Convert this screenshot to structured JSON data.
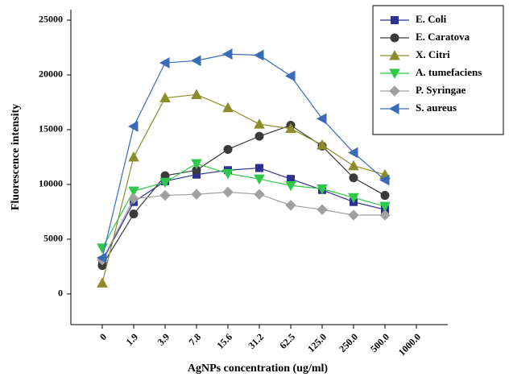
{
  "chart_data": {
    "type": "line",
    "x_label": "AgNPs concentration (ug/ml)",
    "y_label": "Fluorescence intensity",
    "categories": [
      "0",
      "1.9",
      "3.9",
      "7.8",
      "15.6",
      "31.2",
      "62.5",
      "125.0",
      "250.0",
      "500.0",
      "1000.0"
    ],
    "ylim": [
      -2800,
      25500
    ],
    "yticks": [
      0,
      5000,
      10000,
      15000,
      20000,
      25000
    ],
    "legend": "upper right",
    "series": [
      {
        "name": "E. Coli",
        "color": "#2e3192",
        "marker": "square",
        "values": [
          3000,
          8400,
          10300,
          10900,
          11300,
          11500,
          10500,
          9500,
          8400,
          7700,
          null
        ]
      },
      {
        "name": "E. Caratova",
        "color": "#3a3a3a",
        "marker": "circle",
        "values": [
          2600,
          7300,
          10800,
          11300,
          13200,
          14400,
          15400,
          13500,
          10600,
          9000,
          null
        ]
      },
      {
        "name": "X. Citri",
        "color": "#8c8c2a",
        "marker": "triangle-up",
        "values": [
          1000,
          12500,
          17900,
          18200,
          17000,
          15500,
          15100,
          13600,
          11700,
          10900,
          null
        ]
      },
      {
        "name": "A. tumefaciens",
        "color": "#2ec84a",
        "marker": "triangle-down",
        "values": [
          4200,
          9400,
          10200,
          11900,
          11000,
          10500,
          9900,
          9600,
          8800,
          8000,
          null
        ]
      },
      {
        "name": "P. Syringae",
        "color": "#a0a0a0",
        "marker": "diamond",
        "values": [
          3100,
          8700,
          9000,
          9100,
          9300,
          9100,
          8100,
          7700,
          7200,
          7200,
          null
        ]
      },
      {
        "name": "S. aureus",
        "color": "#3a6bb8",
        "marker": "triangle-left",
        "values": [
          3300,
          15300,
          21100,
          21300,
          21900,
          21800,
          19900,
          16000,
          12900,
          10400,
          null
        ]
      }
    ]
  }
}
